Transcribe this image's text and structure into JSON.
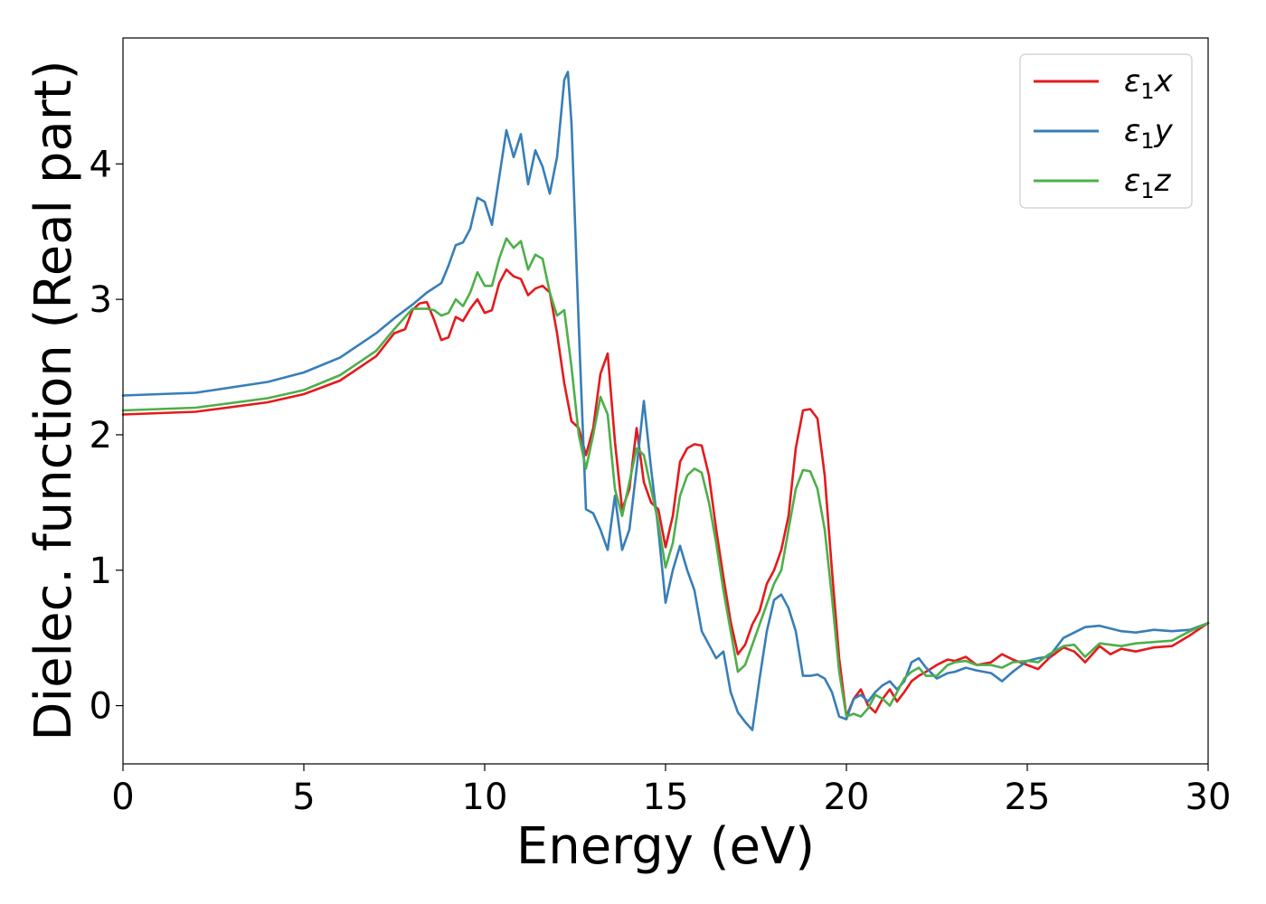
{
  "chart_data": {
    "type": "line",
    "xlabel": "Energy (eV)",
    "ylabel": "Dielec. function (Real part)",
    "xlim": [
      0,
      30
    ],
    "ylim": [
      -0.43,
      4.93
    ],
    "xticks": [
      0,
      5,
      10,
      15,
      20,
      25,
      30
    ],
    "xtick_labels": [
      "0",
      "5",
      "10",
      "15",
      "20",
      "25",
      "30"
    ],
    "yticks": [
      0,
      1,
      2,
      3,
      4
    ],
    "ytick_labels": [
      "0",
      "1",
      "2",
      "3",
      "4"
    ],
    "grid": false,
    "legend_position": "top-right",
    "series": [
      {
        "name": "ε1x",
        "legend_base": "ε",
        "legend_sub": "1",
        "legend_var": "x",
        "color": "#e41a1c",
        "points": [
          [
            0,
            2.15
          ],
          [
            2,
            2.17
          ],
          [
            4,
            2.24
          ],
          [
            5,
            2.3
          ],
          [
            6,
            2.4
          ],
          [
            7,
            2.58
          ],
          [
            7.5,
            2.75
          ],
          [
            7.8,
            2.78
          ],
          [
            8.0,
            2.92
          ],
          [
            8.2,
            2.97
          ],
          [
            8.4,
            2.98
          ],
          [
            8.6,
            2.85
          ],
          [
            8.8,
            2.7
          ],
          [
            9.0,
            2.72
          ],
          [
            9.2,
            2.87
          ],
          [
            9.4,
            2.84
          ],
          [
            9.6,
            2.93
          ],
          [
            9.8,
            3.0
          ],
          [
            10.0,
            2.9
          ],
          [
            10.2,
            2.92
          ],
          [
            10.4,
            3.12
          ],
          [
            10.6,
            3.22
          ],
          [
            10.8,
            3.17
          ],
          [
            11.0,
            3.15
          ],
          [
            11.2,
            3.03
          ],
          [
            11.4,
            3.08
          ],
          [
            11.6,
            3.1
          ],
          [
            11.8,
            3.05
          ],
          [
            12.0,
            2.75
          ],
          [
            12.2,
            2.38
          ],
          [
            12.4,
            2.1
          ],
          [
            12.6,
            2.05
          ],
          [
            12.8,
            1.85
          ],
          [
            13.0,
            2.05
          ],
          [
            13.2,
            2.45
          ],
          [
            13.4,
            2.6
          ],
          [
            13.6,
            1.95
          ],
          [
            13.8,
            1.45
          ],
          [
            14.0,
            1.6
          ],
          [
            14.2,
            2.05
          ],
          [
            14.4,
            1.65
          ],
          [
            14.6,
            1.5
          ],
          [
            14.8,
            1.45
          ],
          [
            15.0,
            1.17
          ],
          [
            15.2,
            1.4
          ],
          [
            15.4,
            1.8
          ],
          [
            15.6,
            1.9
          ],
          [
            15.8,
            1.93
          ],
          [
            16.0,
            1.92
          ],
          [
            16.2,
            1.7
          ],
          [
            16.4,
            1.3
          ],
          [
            16.6,
            0.95
          ],
          [
            16.8,
            0.62
          ],
          [
            17.0,
            0.38
          ],
          [
            17.2,
            0.45
          ],
          [
            17.4,
            0.6
          ],
          [
            17.6,
            0.7
          ],
          [
            17.8,
            0.9
          ],
          [
            18.0,
            1.0
          ],
          [
            18.2,
            1.15
          ],
          [
            18.4,
            1.4
          ],
          [
            18.6,
            1.9
          ],
          [
            18.8,
            2.18
          ],
          [
            19.0,
            2.19
          ],
          [
            19.2,
            2.12
          ],
          [
            19.4,
            1.7
          ],
          [
            19.6,
            1.0
          ],
          [
            19.8,
            0.35
          ],
          [
            20.0,
            -0.08
          ],
          [
            20.2,
            0.05
          ],
          [
            20.4,
            0.12
          ],
          [
            20.6,
            0.0
          ],
          [
            20.8,
            -0.05
          ],
          [
            21.0,
            0.05
          ],
          [
            21.2,
            0.12
          ],
          [
            21.4,
            0.03
          ],
          [
            21.6,
            0.1
          ],
          [
            21.8,
            0.18
          ],
          [
            22.0,
            0.22
          ],
          [
            22.2,
            0.25
          ],
          [
            22.5,
            0.3
          ],
          [
            22.8,
            0.34
          ],
          [
            23.0,
            0.33
          ],
          [
            23.3,
            0.36
          ],
          [
            23.6,
            0.3
          ],
          [
            24.0,
            0.32
          ],
          [
            24.3,
            0.38
          ],
          [
            24.6,
            0.34
          ],
          [
            25.0,
            0.3
          ],
          [
            25.3,
            0.27
          ],
          [
            25.6,
            0.35
          ],
          [
            26.0,
            0.43
          ],
          [
            26.3,
            0.4
          ],
          [
            26.6,
            0.32
          ],
          [
            27.0,
            0.44
          ],
          [
            27.3,
            0.38
          ],
          [
            27.6,
            0.42
          ],
          [
            28.0,
            0.4
          ],
          [
            28.5,
            0.43
          ],
          [
            29.0,
            0.44
          ],
          [
            29.5,
            0.52
          ],
          [
            30.0,
            0.61
          ]
        ]
      },
      {
        "name": "ε1y",
        "legend_base": "ε",
        "legend_sub": "1",
        "legend_var": "y",
        "color": "#377eb8",
        "points": [
          [
            0,
            2.29
          ],
          [
            2,
            2.31
          ],
          [
            4,
            2.39
          ],
          [
            5,
            2.46
          ],
          [
            6,
            2.57
          ],
          [
            7,
            2.75
          ],
          [
            7.5,
            2.86
          ],
          [
            8.0,
            2.96
          ],
          [
            8.4,
            3.05
          ],
          [
            8.8,
            3.12
          ],
          [
            9.0,
            3.25
          ],
          [
            9.2,
            3.4
          ],
          [
            9.4,
            3.42
          ],
          [
            9.6,
            3.52
          ],
          [
            9.8,
            3.75
          ],
          [
            10.0,
            3.72
          ],
          [
            10.2,
            3.55
          ],
          [
            10.4,
            3.9
          ],
          [
            10.6,
            4.25
          ],
          [
            10.8,
            4.05
          ],
          [
            11.0,
            4.22
          ],
          [
            11.2,
            3.85
          ],
          [
            11.4,
            4.1
          ],
          [
            11.6,
            3.98
          ],
          [
            11.8,
            3.78
          ],
          [
            12.0,
            4.05
          ],
          [
            12.2,
            4.62
          ],
          [
            12.3,
            4.68
          ],
          [
            12.4,
            4.3
          ],
          [
            12.6,
            2.8
          ],
          [
            12.8,
            1.45
          ],
          [
            13.0,
            1.42
          ],
          [
            13.2,
            1.3
          ],
          [
            13.4,
            1.15
          ],
          [
            13.6,
            1.55
          ],
          [
            13.8,
            1.15
          ],
          [
            14.0,
            1.3
          ],
          [
            14.2,
            1.75
          ],
          [
            14.4,
            2.25
          ],
          [
            14.6,
            1.75
          ],
          [
            14.8,
            1.3
          ],
          [
            15.0,
            0.76
          ],
          [
            15.2,
            1.0
          ],
          [
            15.4,
            1.18
          ],
          [
            15.6,
            1.0
          ],
          [
            15.8,
            0.85
          ],
          [
            16.0,
            0.55
          ],
          [
            16.2,
            0.45
          ],
          [
            16.4,
            0.35
          ],
          [
            16.6,
            0.4
          ],
          [
            16.8,
            0.1
          ],
          [
            17.0,
            -0.05
          ],
          [
            17.2,
            -0.12
          ],
          [
            17.4,
            -0.18
          ],
          [
            17.6,
            0.2
          ],
          [
            17.8,
            0.55
          ],
          [
            18.0,
            0.78
          ],
          [
            18.2,
            0.82
          ],
          [
            18.4,
            0.72
          ],
          [
            18.6,
            0.55
          ],
          [
            18.8,
            0.22
          ],
          [
            19.0,
            0.22
          ],
          [
            19.2,
            0.23
          ],
          [
            19.4,
            0.2
          ],
          [
            19.6,
            0.1
          ],
          [
            19.8,
            -0.08
          ],
          [
            20.0,
            -0.1
          ],
          [
            20.2,
            0.05
          ],
          [
            20.4,
            0.08
          ],
          [
            20.6,
            0.03
          ],
          [
            20.8,
            0.1
          ],
          [
            21.0,
            0.15
          ],
          [
            21.2,
            0.18
          ],
          [
            21.4,
            0.12
          ],
          [
            21.6,
            0.18
          ],
          [
            21.8,
            0.32
          ],
          [
            22.0,
            0.35
          ],
          [
            22.2,
            0.28
          ],
          [
            22.5,
            0.2
          ],
          [
            22.8,
            0.24
          ],
          [
            23.0,
            0.25
          ],
          [
            23.3,
            0.28
          ],
          [
            23.6,
            0.26
          ],
          [
            24.0,
            0.24
          ],
          [
            24.3,
            0.18
          ],
          [
            24.6,
            0.25
          ],
          [
            25.0,
            0.33
          ],
          [
            25.3,
            0.35
          ],
          [
            25.6,
            0.36
          ],
          [
            26.0,
            0.5
          ],
          [
            26.3,
            0.54
          ],
          [
            26.6,
            0.58
          ],
          [
            27.0,
            0.59
          ],
          [
            27.3,
            0.57
          ],
          [
            27.6,
            0.55
          ],
          [
            28.0,
            0.54
          ],
          [
            28.5,
            0.56
          ],
          [
            29.0,
            0.55
          ],
          [
            29.5,
            0.56
          ],
          [
            30.0,
            0.61
          ]
        ]
      },
      {
        "name": "ε1z",
        "legend_base": "ε",
        "legend_sub": "1",
        "legend_var": "z",
        "color": "#4daf4a",
        "points": [
          [
            0,
            2.18
          ],
          [
            2,
            2.2
          ],
          [
            4,
            2.27
          ],
          [
            5,
            2.33
          ],
          [
            6,
            2.44
          ],
          [
            7,
            2.62
          ],
          [
            7.5,
            2.78
          ],
          [
            8.0,
            2.93
          ],
          [
            8.4,
            2.93
          ],
          [
            8.6,
            2.92
          ],
          [
            8.8,
            2.88
          ],
          [
            9.0,
            2.9
          ],
          [
            9.2,
            3.0
          ],
          [
            9.4,
            2.95
          ],
          [
            9.6,
            3.05
          ],
          [
            9.8,
            3.2
          ],
          [
            10.0,
            3.1
          ],
          [
            10.2,
            3.1
          ],
          [
            10.4,
            3.3
          ],
          [
            10.6,
            3.45
          ],
          [
            10.8,
            3.38
          ],
          [
            11.0,
            3.43
          ],
          [
            11.2,
            3.22
          ],
          [
            11.4,
            3.33
          ],
          [
            11.6,
            3.3
          ],
          [
            11.8,
            3.05
          ],
          [
            12.0,
            2.88
          ],
          [
            12.2,
            2.92
          ],
          [
            12.4,
            2.5
          ],
          [
            12.6,
            2.0
          ],
          [
            12.8,
            1.75
          ],
          [
            13.0,
            2.0
          ],
          [
            13.2,
            2.28
          ],
          [
            13.4,
            2.15
          ],
          [
            13.6,
            1.6
          ],
          [
            13.8,
            1.4
          ],
          [
            14.0,
            1.65
          ],
          [
            14.2,
            1.9
          ],
          [
            14.4,
            1.85
          ],
          [
            14.6,
            1.6
          ],
          [
            14.8,
            1.35
          ],
          [
            15.0,
            1.02
          ],
          [
            15.2,
            1.2
          ],
          [
            15.4,
            1.55
          ],
          [
            15.6,
            1.7
          ],
          [
            15.8,
            1.75
          ],
          [
            16.0,
            1.72
          ],
          [
            16.2,
            1.5
          ],
          [
            16.4,
            1.2
          ],
          [
            16.6,
            0.85
          ],
          [
            16.8,
            0.55
          ],
          [
            17.0,
            0.25
          ],
          [
            17.2,
            0.3
          ],
          [
            17.4,
            0.45
          ],
          [
            17.6,
            0.6
          ],
          [
            17.8,
            0.75
          ],
          [
            18.0,
            0.9
          ],
          [
            18.2,
            1.0
          ],
          [
            18.4,
            1.3
          ],
          [
            18.6,
            1.6
          ],
          [
            18.8,
            1.74
          ],
          [
            19.0,
            1.73
          ],
          [
            19.2,
            1.6
          ],
          [
            19.4,
            1.3
          ],
          [
            19.6,
            0.8
          ],
          [
            19.8,
            0.25
          ],
          [
            20.0,
            -0.08
          ],
          [
            20.2,
            -0.06
          ],
          [
            20.4,
            -0.08
          ],
          [
            20.6,
            -0.02
          ],
          [
            20.8,
            0.08
          ],
          [
            21.0,
            0.05
          ],
          [
            21.2,
            0.0
          ],
          [
            21.4,
            0.1
          ],
          [
            21.6,
            0.2
          ],
          [
            21.8,
            0.25
          ],
          [
            22.0,
            0.28
          ],
          [
            22.2,
            0.22
          ],
          [
            22.5,
            0.22
          ],
          [
            22.8,
            0.3
          ],
          [
            23.0,
            0.32
          ],
          [
            23.3,
            0.33
          ],
          [
            23.6,
            0.3
          ],
          [
            24.0,
            0.3
          ],
          [
            24.3,
            0.28
          ],
          [
            24.6,
            0.32
          ],
          [
            25.0,
            0.33
          ],
          [
            25.3,
            0.32
          ],
          [
            25.6,
            0.38
          ],
          [
            26.0,
            0.44
          ],
          [
            26.3,
            0.45
          ],
          [
            26.6,
            0.36
          ],
          [
            27.0,
            0.46
          ],
          [
            27.3,
            0.45
          ],
          [
            27.6,
            0.44
          ],
          [
            28.0,
            0.46
          ],
          [
            28.5,
            0.47
          ],
          [
            29.0,
            0.48
          ],
          [
            29.5,
            0.55
          ],
          [
            30.0,
            0.61
          ]
        ]
      }
    ]
  }
}
